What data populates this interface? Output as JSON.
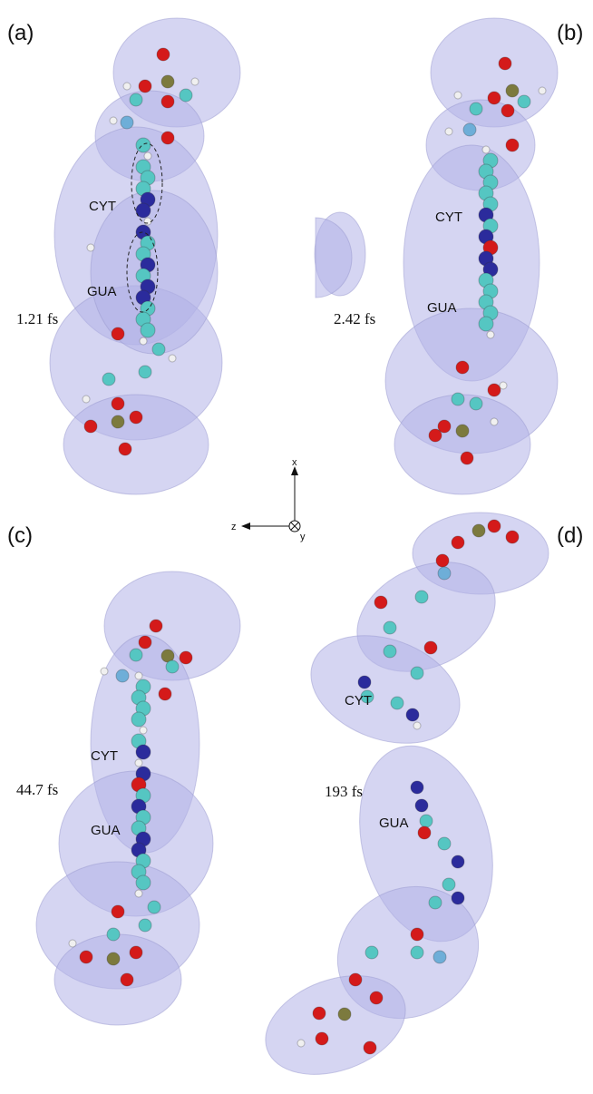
{
  "panels": [
    {
      "label": "(a)",
      "time": "1.21 fs",
      "molecules": [
        "CYT",
        "GUA"
      ]
    },
    {
      "label": "(b)",
      "time": "2.42 fs",
      "molecules": [
        "CYT",
        "GUA"
      ]
    },
    {
      "label": "(c)",
      "time": "44.7 fs",
      "molecules": [
        "CYT",
        "GUA"
      ]
    },
    {
      "label": "(d)",
      "time": "193 fs",
      "molecules": [
        "CYT",
        "GUA"
      ]
    }
  ],
  "axes": {
    "x": "x",
    "z": "z",
    "y": "y"
  }
}
